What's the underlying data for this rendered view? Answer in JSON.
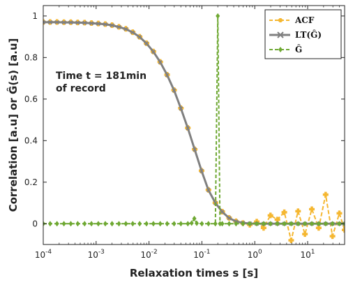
{
  "chart_data": {
    "type": "line",
    "title": "",
    "xlabel": "Relaxation times s [s]",
    "ylabel": "Correlation [a.u] or Ĝ(s) [a.u]",
    "xscale": "log",
    "xlim": [
      0.0001,
      50
    ],
    "ylim": [
      -0.1,
      1.05
    ],
    "xticks": [
      {
        "value": 0.0001,
        "base": "10",
        "exp": "-4"
      },
      {
        "value": 0.001,
        "base": "10",
        "exp": "-3"
      },
      {
        "value": 0.01,
        "base": "10",
        "exp": "-2"
      },
      {
        "value": 0.1,
        "base": "10",
        "exp": "-1"
      },
      {
        "value": 1,
        "base": "10",
        "exp": "0"
      },
      {
        "value": 10,
        "base": "10",
        "exp": "1"
      }
    ],
    "yticks": [
      {
        "value": 0,
        "label": "0"
      },
      {
        "value": 0.2,
        "label": "0.2"
      },
      {
        "value": 0.4,
        "label": "0.4"
      },
      {
        "value": 0.6,
        "label": "0.6"
      },
      {
        "value": 0.8,
        "label": "0.8"
      },
      {
        "value": 1,
        "label": "1"
      }
    ],
    "grid": false,
    "legend_position": "top-right",
    "annotation": {
      "line1": "Time t = 181min",
      "line2": "of record"
    },
    "colors": {
      "acf": "#f5b731",
      "lt": "#808080",
      "ghat": "#6ea832"
    },
    "series": [
      {
        "name": "ACF",
        "marker": "plus-thick",
        "values": [
          [
            0.0001,
            0.971
          ],
          [
            0.000135,
            0.971
          ],
          [
            0.000182,
            0.971
          ],
          [
            0.000246,
            0.97
          ],
          [
            0.000332,
            0.97
          ],
          [
            0.000448,
            0.969
          ],
          [
            0.000605,
            0.968
          ],
          [
            0.000816,
            0.966
          ],
          [
            0.0011,
            0.964
          ],
          [
            0.00149,
            0.961
          ],
          [
            0.002,
            0.956
          ],
          [
            0.0027,
            0.948
          ],
          [
            0.00365,
            0.938
          ],
          [
            0.00492,
            0.922
          ],
          [
            0.00665,
            0.9
          ],
          [
            0.00897,
            0.869
          ],
          [
            0.0121,
            0.829
          ],
          [
            0.0163,
            0.779
          ],
          [
            0.022,
            0.717
          ],
          [
            0.0298,
            0.643
          ],
          [
            0.0401,
            0.556
          ],
          [
            0.0542,
            0.461
          ],
          [
            0.0731,
            0.358
          ],
          [
            0.0987,
            0.255
          ],
          [
            0.133,
            0.163
          ],
          [
            0.18,
            0.101
          ],
          [
            0.243,
            0.058
          ],
          [
            0.328,
            0.028
          ],
          [
            0.442,
            0.012
          ],
          [
            0.597,
            0.003
          ],
          [
            0.806,
            -0.005
          ],
          [
            1.09,
            0.01
          ],
          [
            1.47,
            -0.02
          ],
          [
            1.98,
            0.04
          ],
          [
            2.68,
            0.02
          ],
          [
            3.62,
            0.055
          ],
          [
            4.88,
            -0.08
          ],
          [
            6.59,
            0.06
          ],
          [
            8.89,
            -0.05
          ],
          [
            12.0,
            0.07
          ],
          [
            16.2,
            -0.02
          ],
          [
            21.9,
            0.14
          ],
          [
            29.5,
            -0.06
          ],
          [
            39.8,
            0.05
          ],
          [
            50,
            -0.03
          ]
        ]
      },
      {
        "name": "LT(Ĝ)",
        "marker": "x",
        "values": [
          [
            0.0001,
            0.97
          ],
          [
            0.000135,
            0.97
          ],
          [
            0.000182,
            0.97
          ],
          [
            0.000246,
            0.969
          ],
          [
            0.000332,
            0.969
          ],
          [
            0.000448,
            0.968
          ],
          [
            0.000605,
            0.967
          ],
          [
            0.000816,
            0.965
          ],
          [
            0.0011,
            0.963
          ],
          [
            0.00149,
            0.96
          ],
          [
            0.002,
            0.955
          ],
          [
            0.0027,
            0.947
          ],
          [
            0.00365,
            0.937
          ],
          [
            0.00492,
            0.921
          ],
          [
            0.00665,
            0.899
          ],
          [
            0.00897,
            0.868
          ],
          [
            0.0121,
            0.828
          ],
          [
            0.0163,
            0.778
          ],
          [
            0.022,
            0.716
          ],
          [
            0.0298,
            0.642
          ],
          [
            0.0401,
            0.555
          ],
          [
            0.0542,
            0.46
          ],
          [
            0.0731,
            0.357
          ],
          [
            0.0987,
            0.254
          ],
          [
            0.133,
            0.162
          ],
          [
            0.18,
            0.1
          ],
          [
            0.243,
            0.057
          ],
          [
            0.328,
            0.027
          ],
          [
            0.442,
            0.011
          ],
          [
            0.597,
            0.004
          ],
          [
            0.806,
            0.001
          ],
          [
            1.09,
            0.0
          ],
          [
            1.47,
            0.0
          ],
          [
            1.98,
            0.0
          ],
          [
            2.68,
            0.0
          ],
          [
            3.62,
            0.0
          ],
          [
            4.88,
            0.0
          ],
          [
            6.59,
            0.0
          ],
          [
            8.89,
            0.0
          ],
          [
            12.0,
            0.0
          ],
          [
            16.2,
            0.0
          ],
          [
            21.9,
            0.0
          ],
          [
            29.5,
            0.0
          ],
          [
            39.8,
            0.0
          ],
          [
            50,
            0.0
          ]
        ]
      },
      {
        "name": "Ĝ",
        "marker": "diamond",
        "values": [
          [
            0.0001,
            0.0
          ],
          [
            0.000135,
            0.0
          ],
          [
            0.000182,
            0.0
          ],
          [
            0.000246,
            0.0
          ],
          [
            0.000332,
            0.0
          ],
          [
            0.000448,
            0.0
          ],
          [
            0.000605,
            0.0
          ],
          [
            0.000816,
            0.0
          ],
          [
            0.0011,
            0.0
          ],
          [
            0.00149,
            0.0
          ],
          [
            0.002,
            0.0
          ],
          [
            0.0027,
            0.0
          ],
          [
            0.00365,
            0.0
          ],
          [
            0.00492,
            0.0
          ],
          [
            0.00665,
            0.0
          ],
          [
            0.00897,
            0.0
          ],
          [
            0.0121,
            0.0
          ],
          [
            0.0163,
            0.0
          ],
          [
            0.022,
            0.0
          ],
          [
            0.0298,
            0.0
          ],
          [
            0.0401,
            0.0
          ],
          [
            0.0542,
            0.0
          ],
          [
            0.064,
            0.003
          ],
          [
            0.072,
            0.025
          ],
          [
            0.08,
            0.002
          ],
          [
            0.1,
            0.0
          ],
          [
            0.133,
            0.0
          ],
          [
            0.18,
            0.0
          ],
          [
            0.2,
            1.0
          ],
          [
            0.22,
            0.0
          ],
          [
            0.243,
            0.0
          ],
          [
            0.328,
            0.0
          ],
          [
            0.442,
            0.0
          ],
          [
            0.597,
            0.0
          ],
          [
            0.806,
            0.0
          ],
          [
            1.09,
            0.0
          ],
          [
            1.47,
            0.0
          ],
          [
            1.98,
            0.0
          ],
          [
            2.68,
            0.0
          ],
          [
            3.62,
            0.0
          ],
          [
            4.88,
            0.0
          ],
          [
            6.59,
            0.0
          ],
          [
            8.89,
            0.0
          ],
          [
            12.0,
            0.0
          ],
          [
            16.2,
            0.0
          ],
          [
            21.9,
            0.0
          ],
          [
            29.5,
            0.0
          ],
          [
            39.8,
            0.0
          ],
          [
            50,
            0.0
          ]
        ]
      }
    ]
  }
}
